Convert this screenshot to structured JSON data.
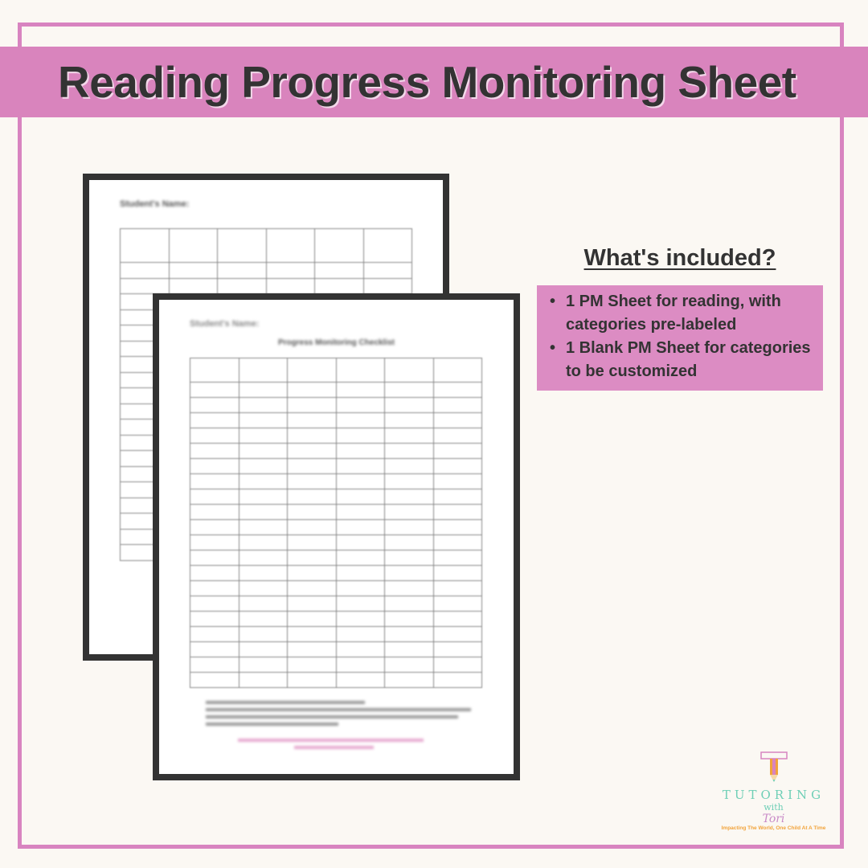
{
  "header": {
    "title": "Reading Progress Monitoring Sheet"
  },
  "preview": {
    "back_sheet": {
      "name_label": "Student's Name:"
    },
    "front_sheet": {
      "name_label": "Student's Name:",
      "title": "Progress Monitoring Checklist"
    }
  },
  "included": {
    "heading": "What's included?",
    "items": [
      {
        "label": "1 PM Sheet for reading, with categories pre-labeled"
      },
      {
        "label": "1 Blank PM Sheet for categories to be customized"
      }
    ]
  },
  "logo": {
    "line1": "TUTORING",
    "line2": "with",
    "line3": "Tori",
    "tagline": "Impacting The World, One Child At A Time"
  },
  "colors": {
    "accent": "#d984bd",
    "background": "#fbf8f3",
    "text": "#333333"
  }
}
